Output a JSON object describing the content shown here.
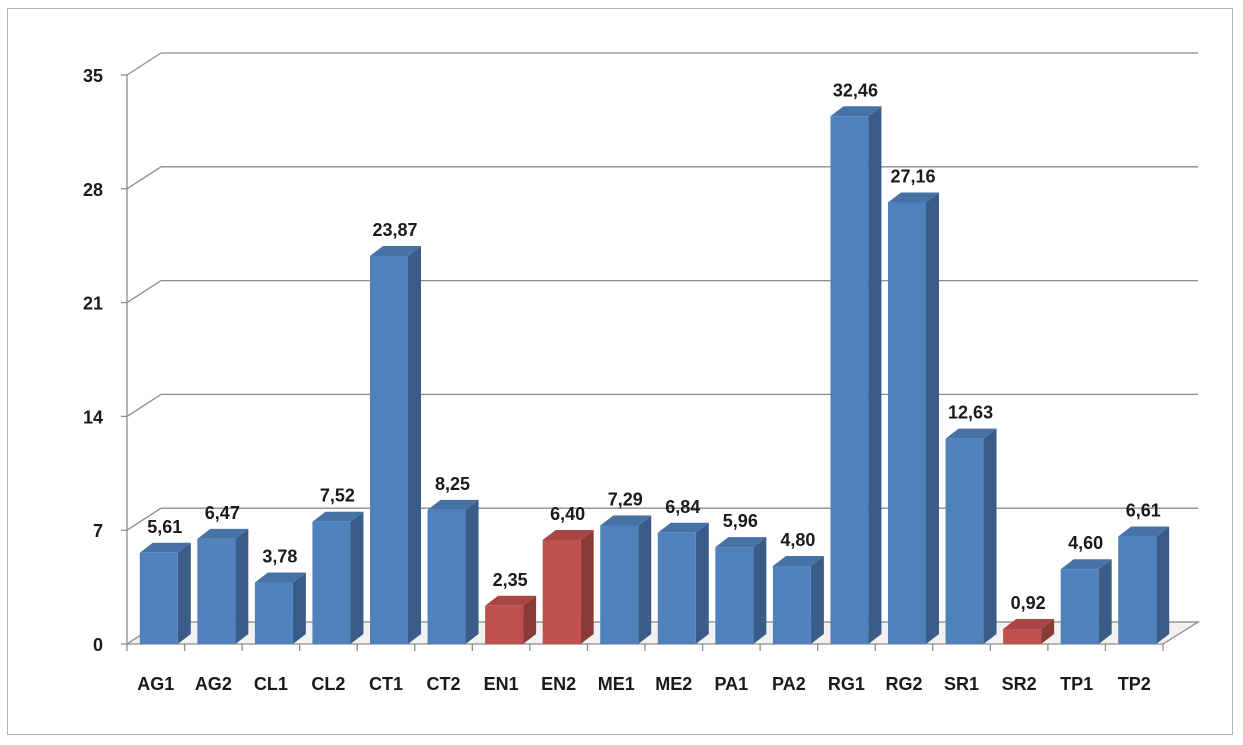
{
  "chart_data": {
    "type": "bar",
    "categories": [
      "AG1",
      "AG2",
      "CL1",
      "CL2",
      "CT1",
      "CT2",
      "EN1",
      "EN2",
      "ME1",
      "ME2",
      "PA1",
      "PA2",
      "RG1",
      "RG2",
      "SR1",
      "SR2",
      "TP1",
      "TP2"
    ],
    "values": [
      5.61,
      6.47,
      3.78,
      7.52,
      23.87,
      8.25,
      2.35,
      6.4,
      7.29,
      6.84,
      5.96,
      4.8,
      32.46,
      27.16,
      12.63,
      0.92,
      4.6,
      6.61
    ],
    "value_labels": [
      "5,61",
      "6,47",
      "3,78",
      "7,52",
      "23,87",
      "8,25",
      "2,35",
      "6,40",
      "7,29",
      "6,84",
      "5,96",
      "4,80",
      "32,46",
      "27,16",
      "12,63",
      "0,92",
      "4,60",
      "6,61"
    ],
    "highlighted": [
      "EN1",
      "EN2",
      "SR2"
    ],
    "yticks": [
      0,
      7,
      14,
      21,
      28,
      35
    ],
    "ylim": [
      0,
      35
    ],
    "grid": true,
    "style": "3d-column",
    "colors": {
      "default": "#4f81bd",
      "highlight": "#c0504d"
    }
  }
}
